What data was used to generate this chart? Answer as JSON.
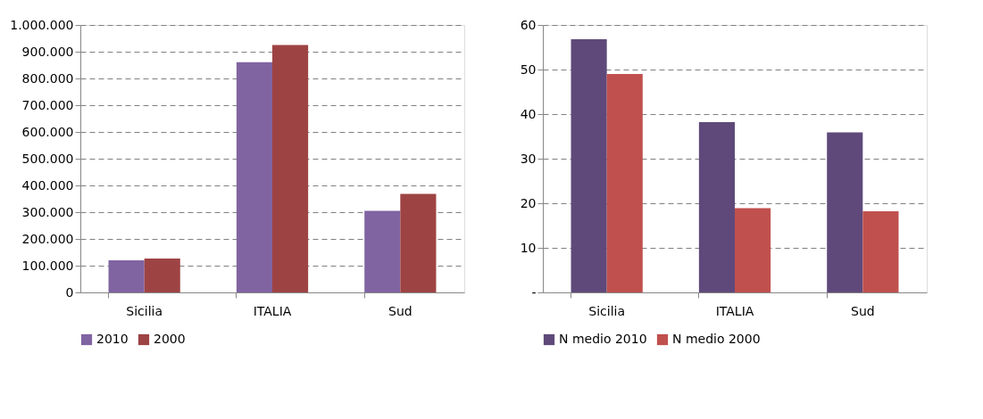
{
  "chart_data": [
    {
      "type": "bar",
      "categories": [
        "Sicilia",
        "ITALIA",
        "Sud"
      ],
      "series": [
        {
          "name": "2010",
          "color": "#8064a2",
          "values": [
            120000,
            861000,
            305000
          ]
        },
        {
          "name": "2000",
          "color": "#9e4343",
          "values": [
            127000,
            925000,
            368000
          ]
        }
      ],
      "ylim": [
        0,
        1000000
      ],
      "yticks": [
        0,
        {
          "value": 100000,
          "label": "100.000"
        },
        {
          "value": 200000,
          "label": "200.000"
        },
        {
          "value": 300000,
          "label": "300.000"
        },
        {
          "value": 400000,
          "label": "400.000"
        },
        {
          "value": 500000,
          "label": "500.000"
        },
        {
          "value": 600000,
          "label": "600.000"
        },
        {
          "value": 700000,
          "label": "700.000"
        },
        {
          "value": 800000,
          "label": "800.000"
        },
        {
          "value": 900000,
          "label": "900.000"
        },
        {
          "value": 1000000,
          "label": "1.000.000"
        }
      ],
      "grid": "y",
      "legend": "bottom"
    },
    {
      "type": "bar",
      "categories": [
        "Sicilia",
        "ITALIA",
        "Sud"
      ],
      "series": [
        {
          "name": "N medio 2010",
          "color": "#5f497a",
          "values": [
            56.8,
            38.2,
            35.9
          ]
        },
        {
          "name": "N medio 2000",
          "color": "#c0504d",
          "values": [
            49.0,
            18.9,
            18.2
          ]
        }
      ],
      "ylim": [
        0,
        60
      ],
      "yticks": [
        {
          "value": 0,
          "label": "-"
        },
        10,
        20,
        30,
        40,
        50,
        60
      ],
      "grid": "y",
      "legend": "bottom"
    }
  ]
}
